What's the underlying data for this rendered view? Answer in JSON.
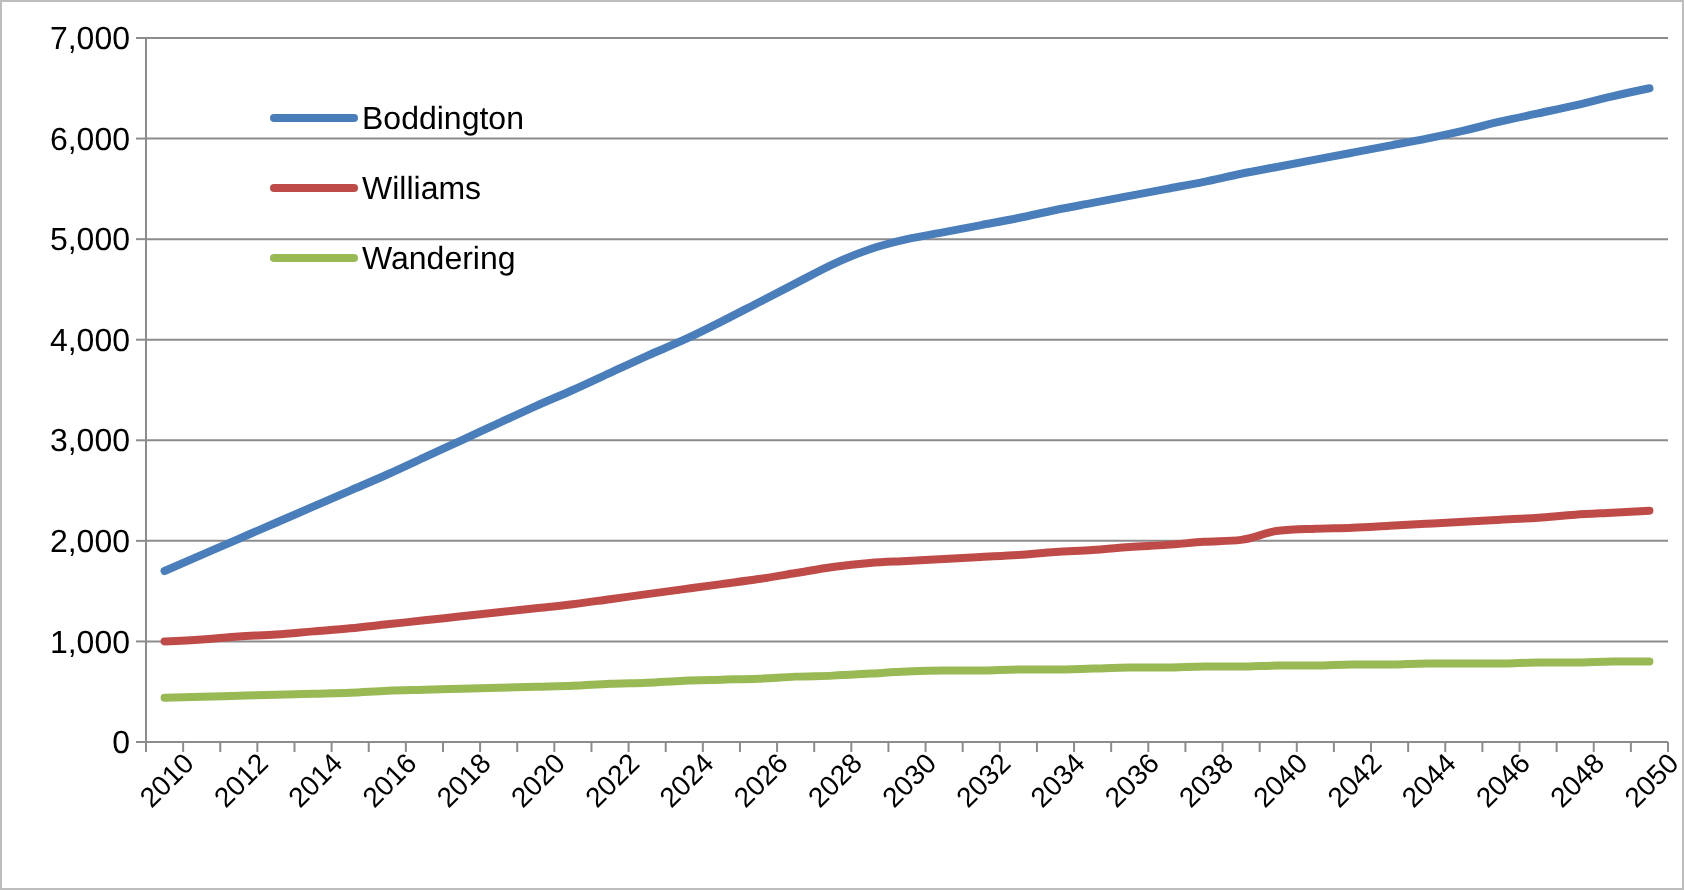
{
  "chart_data": {
    "type": "line",
    "categories": [
      "2010",
      null,
      "2012",
      null,
      "2014",
      null,
      "2016",
      null,
      "2018",
      null,
      "2020",
      null,
      "2022",
      null,
      "2024",
      null,
      "2026",
      null,
      "2028",
      null,
      "2030",
      null,
      "2032",
      null,
      "2034",
      null,
      "2036",
      null,
      "2038",
      null,
      "2040",
      null,
      "2042",
      null,
      "2044",
      null,
      "2046",
      null,
      "2048",
      null,
      "2050"
    ],
    "series": [
      {
        "name": "Boddington",
        "color": "#4a7ebb",
        "values": [
          1700,
          1860,
          2020,
          2180,
          2340,
          2500,
          2660,
          2830,
          3000,
          3170,
          3340,
          3500,
          3670,
          3840,
          4000,
          4180,
          4370,
          4560,
          4750,
          4900,
          5000,
          5070,
          5140,
          5210,
          5290,
          5360,
          5430,
          5500,
          5570,
          5650,
          5720,
          5790,
          5860,
          5930,
          6000,
          6080,
          6170,
          6250,
          6330,
          6420,
          6500
        ]
      },
      {
        "name": "Williams",
        "color": "#be4b48",
        "values": [
          1000,
          1020,
          1050,
          1070,
          1100,
          1130,
          1170,
          1210,
          1250,
          1290,
          1330,
          1370,
          1420,
          1470,
          1520,
          1570,
          1620,
          1680,
          1740,
          1780,
          1800,
          1820,
          1840,
          1860,
          1890,
          1910,
          1940,
          1960,
          1990,
          2010,
          2100,
          2120,
          2130,
          2150,
          2170,
          2190,
          2210,
          2230,
          2260,
          2280,
          2300
        ]
      },
      {
        "name": "Wandering",
        "color": "#98b954",
        "values": [
          440,
          450,
          460,
          470,
          480,
          490,
          510,
          520,
          530,
          540,
          550,
          560,
          580,
          590,
          610,
          620,
          630,
          650,
          660,
          680,
          700,
          710,
          710,
          720,
          720,
          730,
          740,
          740,
          750,
          750,
          760,
          760,
          770,
          770,
          780,
          780,
          780,
          790,
          790,
          800,
          800
        ]
      }
    ],
    "ylim": [
      0,
      7000
    ],
    "yticks": [
      {
        "value": 0,
        "label": "0"
      },
      {
        "value": 1000,
        "label": "1,000"
      },
      {
        "value": 2000,
        "label": "2,000"
      },
      {
        "value": 3000,
        "label": "3,000"
      },
      {
        "value": 4000,
        "label": "4,000"
      },
      {
        "value": 5000,
        "label": "5,000"
      },
      {
        "value": 6000,
        "label": "6,000"
      },
      {
        "value": 7000,
        "label": "7,000"
      }
    ],
    "grid": "y",
    "legend": "top left",
    "marker": "none",
    "line_style": "solid"
  }
}
